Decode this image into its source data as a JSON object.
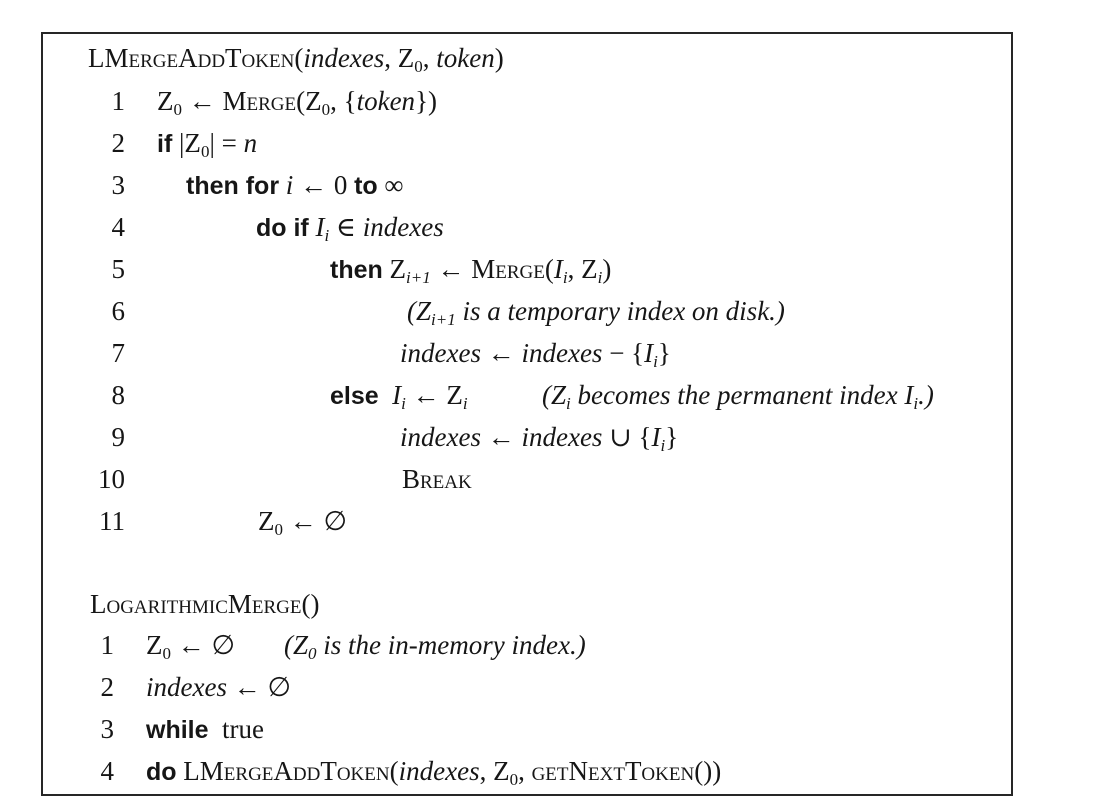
{
  "algorithm1": {
    "name": "LMergeAddToken",
    "params": "(indexes, Z0, token)",
    "lines": [
      {
        "num": "1",
        "text": "Z0 ← Merge(Z0, {token})"
      },
      {
        "num": "2",
        "text": "if |Z0| = n"
      },
      {
        "num": "3",
        "text": "then for i ← 0 to ∞"
      },
      {
        "num": "4",
        "text": "do if Ii ∈ indexes"
      },
      {
        "num": "5",
        "text": "then Zi+1 ← Merge(Ii, Zi)"
      },
      {
        "num": "6",
        "text": "(Zi+1 is a temporary index on disk.)"
      },
      {
        "num": "7",
        "text": "indexes ← indexes − {Ii}"
      },
      {
        "num": "8",
        "text": "else Ii ← Zi (Zi becomes the permanent index Ii.)"
      },
      {
        "num": "9",
        "text": "indexes ← indexes ∪ {Ii}"
      },
      {
        "num": "10",
        "text": "Break"
      },
      {
        "num": "11",
        "text": "Z0 ← ∅"
      }
    ]
  },
  "algorithm2": {
    "name": "LogarithmicMerge",
    "params": "()",
    "lines": [
      {
        "num": "1",
        "text": "Z0 ← ∅ (Z0 is the in-memory index.)"
      },
      {
        "num": "2",
        "text": "indexes ← ∅"
      },
      {
        "num": "3",
        "text": "while true"
      },
      {
        "num": "4",
        "text": "do LMergeAddToken(indexes, Z0, getNextToken())"
      }
    ]
  }
}
